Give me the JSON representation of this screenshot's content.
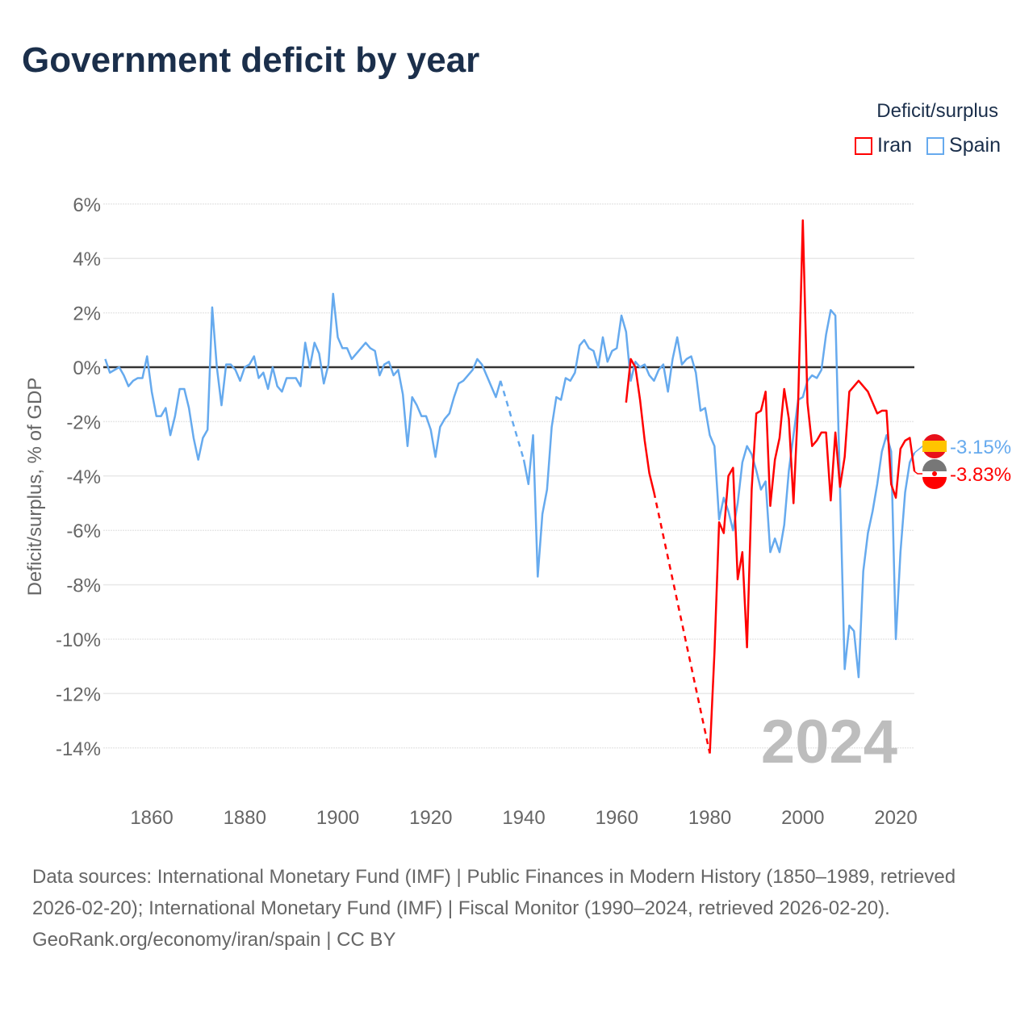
{
  "title": "Government deficit by year",
  "legend": {
    "title": "Deficit/surplus",
    "items": [
      {
        "name": "Iran",
        "color": "#ff0000"
      },
      {
        "name": "Spain",
        "color": "#66aaee"
      }
    ]
  },
  "footer": {
    "sources": "Data sources: International Monetary Fund (IMF) | Public Finances in Modern History (1850–1989, retrieved 2026-02-20); International Monetary Fund (IMF) | Fiscal Monitor (1990–2024, retrieved 2026-02-20).",
    "credit": "GeoRank.org/economy/iran/spain | CC BY"
  },
  "chart_data": {
    "type": "line",
    "title": "Government deficit by year",
    "xlabel": "",
    "ylabel": "Deficit/surplus, % of GDP",
    "xlim": [
      1850,
      2024
    ],
    "ylim": [
      -15,
      6
    ],
    "xticks": [
      1860,
      1880,
      1900,
      1920,
      1940,
      1960,
      1980,
      2000,
      2020
    ],
    "yticks": [
      6,
      4,
      2,
      0,
      -2,
      -4,
      -6,
      -8,
      -10,
      -12,
      -14
    ],
    "ytick_labels": [
      "6%",
      "4%",
      "2%",
      "0%",
      "-2%",
      "-4%",
      "-6%",
      "-8%",
      "-10%",
      "-12%",
      "-14%"
    ],
    "grid": true,
    "legend_position": "top-right",
    "year_watermark": "2024",
    "end_labels": {
      "Spain": "-3.15%",
      "Iran": "-3.83%"
    },
    "series": [
      {
        "name": "Spain",
        "color": "#66aaee",
        "x": [
          1850,
          1851,
          1852,
          1853,
          1854,
          1855,
          1856,
          1857,
          1858,
          1859,
          1860,
          1861,
          1862,
          1863,
          1864,
          1865,
          1866,
          1867,
          1868,
          1869,
          1870,
          1871,
          1872,
          1873,
          1874,
          1875,
          1876,
          1877,
          1878,
          1879,
          1880,
          1881,
          1882,
          1883,
          1884,
          1885,
          1886,
          1887,
          1888,
          1889,
          1890,
          1891,
          1892,
          1893,
          1894,
          1895,
          1896,
          1897,
          1898,
          1899,
          1900,
          1901,
          1902,
          1903,
          1904,
          1905,
          1906,
          1907,
          1908,
          1909,
          1910,
          1911,
          1912,
          1913,
          1914,
          1915,
          1916,
          1917,
          1918,
          1919,
          1920,
          1921,
          1922,
          1923,
          1924,
          1925,
          1926,
          1927,
          1928,
          1929,
          1930,
          1931,
          1932,
          1933,
          1934,
          1935,
          1940,
          1941,
          1942,
          1943,
          1944,
          1945,
          1946,
          1947,
          1948,
          1949,
          1950,
          1951,
          1952,
          1953,
          1954,
          1955,
          1956,
          1957,
          1958,
          1959,
          1960,
          1961,
          1962,
          1963,
          1964,
          1965,
          1966,
          1967,
          1968,
          1969,
          1970,
          1971,
          1972,
          1973,
          1974,
          1975,
          1976,
          1977,
          1978,
          1979,
          1980,
          1981,
          1982,
          1983,
          1984,
          1985,
          1986,
          1987,
          1988,
          1989,
          1990,
          1991,
          1992,
          1993,
          1994,
          1995,
          1996,
          1997,
          1998,
          1999,
          2000,
          2001,
          2002,
          2003,
          2004,
          2005,
          2006,
          2007,
          2008,
          2009,
          2010,
          2011,
          2012,
          2013,
          2014,
          2015,
          2016,
          2017,
          2018,
          2019,
          2020,
          2021,
          2022,
          2023,
          2024
        ],
        "y": [
          0.3,
          -0.2,
          -0.1,
          0,
          -0.3,
          -0.7,
          -0.5,
          -0.4,
          -0.4,
          0.4,
          -0.9,
          -1.8,
          -1.8,
          -1.5,
          -2.5,
          -1.8,
          -0.8,
          -0.8,
          -1.5,
          -2.6,
          -3.4,
          -2.6,
          -2.3,
          2.2,
          0,
          -1.4,
          0.1,
          0.1,
          -0.1,
          -0.5,
          0,
          0.1,
          0.4,
          -0.4,
          -0.2,
          -0.8,
          0,
          -0.7,
          -0.9,
          -0.4,
          -0.4,
          -0.4,
          -0.7,
          0.9,
          0,
          0.9,
          0.5,
          -0.6,
          0.1,
          2.7,
          1.1,
          0.7,
          0.7,
          0.3,
          0.5,
          0.7,
          0.9,
          0.7,
          0.6,
          -0.3,
          0.1,
          0.2,
          -0.3,
          -0.1,
          -1,
          -2.9,
          -1.1,
          -1.4,
          -1.8,
          -1.8,
          -2.3,
          -3.3,
          -2.2,
          -1.9,
          -1.7,
          -1.1,
          -0.6,
          -0.5,
          -0.3,
          -0.1,
          0.3,
          0.1,
          -0.3,
          -0.7,
          -1.1,
          -0.5,
          -3.4,
          -4.3,
          -2.5,
          -7.7,
          -5.4,
          -4.5,
          -2.2,
          -1.1,
          -1.2,
          -0.4,
          -0.5,
          -0.2,
          0.8,
          1.0,
          0.7,
          0.6,
          0,
          1.1,
          0.2,
          0.6,
          0.7,
          1.9,
          1.3,
          -0.5,
          0.2,
          0,
          0.1,
          -0.3,
          -0.5,
          -0.1,
          0.1,
          -0.9,
          0.3,
          1.1,
          0.1,
          0.3,
          0.4,
          -0.2,
          -1.6,
          -1.5,
          -2.5,
          -2.9,
          -5.6,
          -4.8,
          -5.3,
          -6.0,
          -5.0,
          -3.5,
          -2.9,
          -3.2,
          -3.8,
          -4.5,
          -4.2,
          -6.8,
          -6.3,
          -6.8,
          -5.8,
          -3.8,
          -2.5,
          -1.2,
          -1.1,
          -0.5,
          -0.3,
          -0.4,
          -0.1,
          1.2,
          2.1,
          1.9,
          -4.4,
          -11.1,
          -9.5,
          -9.7,
          -11.4,
          -7.5,
          -6.1,
          -5.3,
          -4.3,
          -3.1,
          -2.5,
          -3.1,
          -10.0,
          -6.8,
          -4.6,
          -3.5,
          -3.15
        ]
      },
      {
        "name": "Iran",
        "color": "#ff0000",
        "x": [
          1962,
          1963,
          1964,
          1965,
          1966,
          1967,
          1968,
          1980,
          1981,
          1982,
          1983,
          1984,
          1985,
          1986,
          1987,
          1988,
          1989,
          1990,
          1991,
          1992,
          1993,
          1994,
          1995,
          1996,
          1997,
          1998,
          1999,
          2000,
          2001,
          2002,
          2003,
          2004,
          2005,
          2006,
          2007,
          2008,
          2009,
          2010,
          2011,
          2012,
          2013,
          2014,
          2015,
          2016,
          2017,
          2018,
          2019,
          2020,
          2021,
          2022,
          2023,
          2024
        ],
        "y": [
          -1.3,
          0.3,
          0,
          -1.2,
          -2.7,
          -3.9,
          -4.6,
          -14.2,
          -10.5,
          -5.7,
          -6.1,
          -4.0,
          -3.7,
          -7.8,
          -6.8,
          -10.3,
          -4.5,
          -1.7,
          -1.6,
          -0.9,
          -5.1,
          -3.4,
          -2.6,
          -0.8,
          -1.9,
          -5.0,
          -1.3,
          5.4,
          -1.3,
          -2.9,
          -2.7,
          -2.4,
          -2.4,
          -4.9,
          -2.4,
          -4.4,
          -3.3,
          -0.9,
          -0.7,
          -0.5,
          -0.7,
          -0.9,
          -1.3,
          -1.7,
          -1.6,
          -1.6,
          -4.3,
          -4.8,
          -3.0,
          -2.7,
          -2.6,
          -3.83
        ]
      }
    ]
  }
}
